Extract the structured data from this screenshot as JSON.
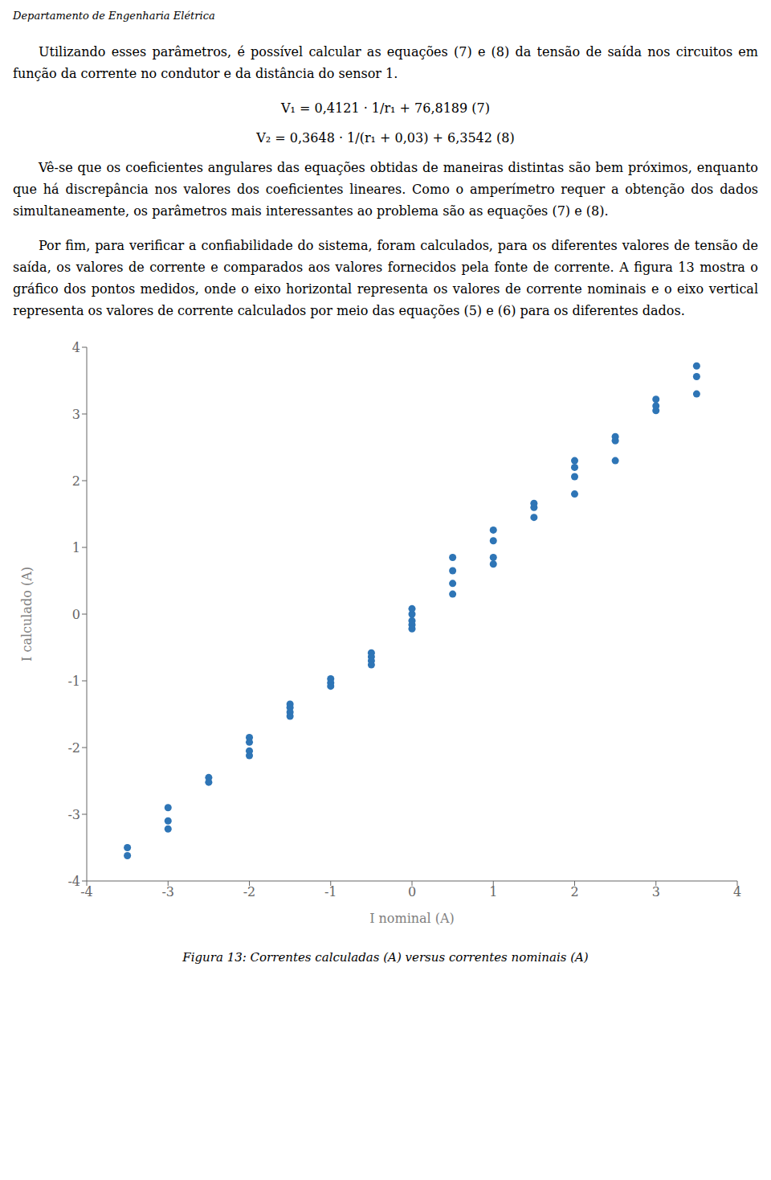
{
  "chart_data": {
    "type": "scatter",
    "title": "Figura 13: Correntes calculadas (A) versus correntes nominais (A)",
    "annotations": [
      "Departamento de Engenharia Elétrica",
      "Utilizando esses parâmetros, é possível calcular as equações (7) e (8) da tensão de saída nos circuitos em função da corrente no condutor e da distância do sensor 1.",
      "V₁ = 0,4121 · 1/r₁ + 76,8189   (7)",
      "V₂ = 0,3648 · 1/(r₁ + 0,03) + 6,3542   (8)",
      "Vê-se que os coeficientes angulares das equações obtidas de maneiras distintas são bem próximos, enquanto que há discrepância nos valores dos coeficientes lineares. Como o amperímetro requer a obtenção dos dados simultaneamente, os parâmetros mais interessantes ao problema são as equações (7) e (8).",
      "Por fim, para verificar a confiabilidade do sistema, foram calculados, para os diferentes valores de tensão de saída, os valores de corrente e comparados aos valores fornecidos pela fonte de corrente. A figura 13 mostra o gráfico dos pontos medidos, onde o eixo horizontal representa os valores de corrente nominais e o eixo vertical representa os valores de corrente calculados por meio das equações (5) e (6) para os diferentes dados."
    ],
    "x": [
      -3.5,
      -3.5,
      -3.0,
      -3.0,
      -3.0,
      -2.5,
      -2.5,
      -2.0,
      -2.0,
      -2.0,
      -2.0,
      -1.5,
      -1.5,
      -1.5,
      -1.5,
      -1.0,
      -1.0,
      -1.0,
      -0.5,
      -0.5,
      -0.5,
      -0.5,
      0.0,
      0.0,
      0.0,
      0.0,
      0.0,
      0.5,
      0.5,
      0.5,
      0.5,
      1.0,
      1.0,
      1.0,
      1.0,
      1.5,
      1.5,
      1.5,
      2.0,
      2.0,
      2.0,
      2.0,
      2.5,
      2.5,
      2.5,
      3.0,
      3.0,
      3.0,
      3.5,
      3.5,
      3.5
    ],
    "values": [
      -3.5,
      -3.62,
      -2.9,
      -3.1,
      -3.22,
      -2.45,
      -2.52,
      -1.85,
      -1.92,
      -2.05,
      -2.12,
      -1.35,
      -1.4,
      -1.47,
      -1.53,
      -0.97,
      -1.03,
      -1.08,
      -0.58,
      -0.64,
      -0.7,
      -0.76,
      -0.1,
      -0.16,
      -0.22,
      0.0,
      0.08,
      0.3,
      0.46,
      0.65,
      0.85,
      0.75,
      0.85,
      1.1,
      1.26,
      1.45,
      1.6,
      1.66,
      1.8,
      2.06,
      2.2,
      2.3,
      2.3,
      2.6,
      2.66,
      3.05,
      3.12,
      3.22,
      3.3,
      3.56,
      3.72
    ],
    "xlabel": "I nominal (A)",
    "ylabel": "I calculado (A)",
    "xlim": [
      -4,
      4
    ],
    "ylim": [
      -4,
      4
    ],
    "xticks": [
      -4,
      -3,
      -2,
      -1,
      0,
      1,
      2,
      3,
      4
    ],
    "yticks": [
      -4,
      -3,
      -2,
      -1,
      0,
      1,
      2,
      3,
      4
    ],
    "color": "#2E75B6",
    "grid": false
  }
}
